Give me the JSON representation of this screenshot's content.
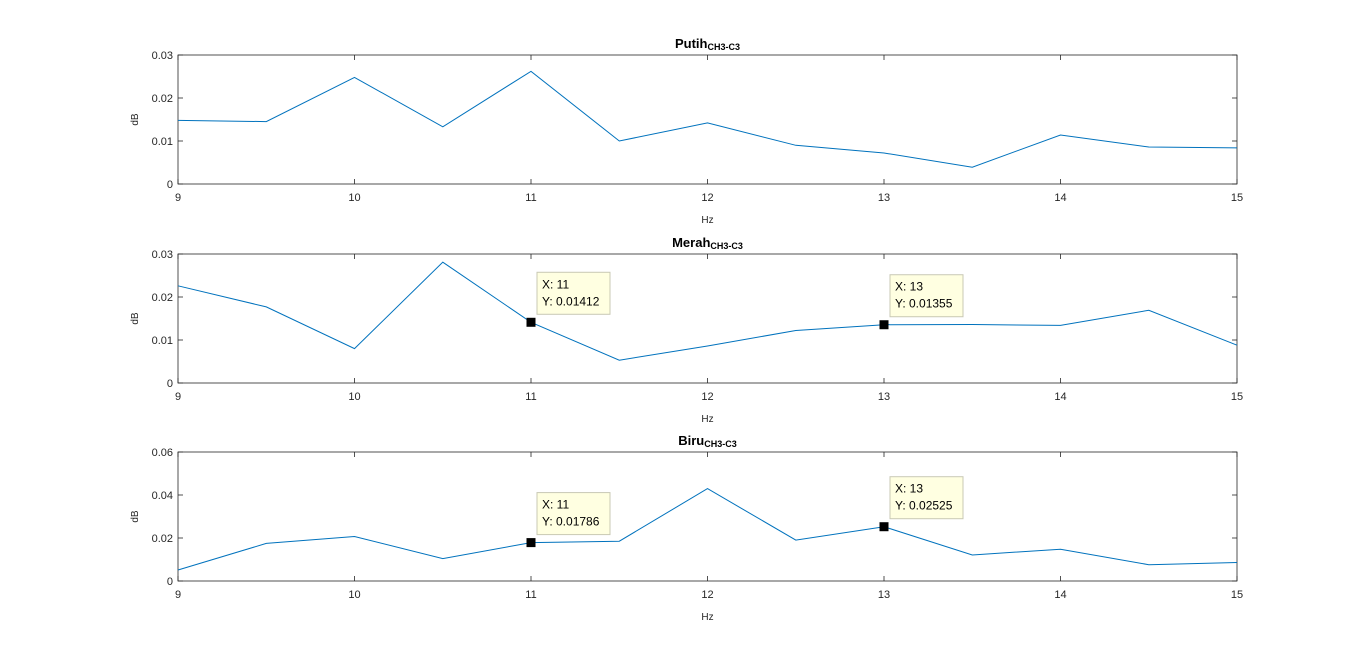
{
  "chart_data": [
    {
      "type": "line",
      "title": "Putih",
      "title_subscript": "CH3-C3",
      "xlabel": "Hz",
      "ylabel": "dB",
      "xlim": [
        9,
        15
      ],
      "ylim": [
        0,
        0.03
      ],
      "xticks": [
        "9",
        "10",
        "11",
        "12",
        "13",
        "14",
        "15"
      ],
      "yticks": [
        "0",
        "0.01",
        "0.02",
        "0.03"
      ],
      "grid": false,
      "line_color": "#0072bd",
      "series": [
        {
          "x": [
            9,
            9.5,
            10,
            10.5,
            11,
            11.5,
            12,
            12.5,
            13,
            13.5,
            14,
            14.5,
            15
          ],
          "y": [
            0.0148,
            0.0145,
            0.0248,
            0.0133,
            0.0262,
            0.01,
            0.0142,
            0.009,
            0.0072,
            0.0039,
            0.0114,
            0.0086,
            0.0084
          ]
        }
      ],
      "datatips": []
    },
    {
      "type": "line",
      "title": "Merah",
      "title_subscript": "CH3-C3",
      "xlabel": "Hz",
      "ylabel": "dB",
      "xlim": [
        9,
        15
      ],
      "ylim": [
        0,
        0.03
      ],
      "xticks": [
        "9",
        "10",
        "11",
        "12",
        "13",
        "14",
        "15"
      ],
      "yticks": [
        "0",
        "0.01",
        "0.02",
        "0.03"
      ],
      "grid": false,
      "line_color": "#0072bd",
      "series": [
        {
          "x": [
            9,
            9.5,
            10,
            10.5,
            11,
            11.5,
            12,
            12.5,
            13,
            13.5,
            14,
            14.5,
            15
          ],
          "y": [
            0.0226,
            0.0177,
            0.008,
            0.0281,
            0.01412,
            0.0053,
            0.0086,
            0.0122,
            0.01355,
            0.0136,
            0.0134,
            0.0169,
            0.0088
          ]
        }
      ],
      "datatips": [
        {
          "x": 11,
          "y": 0.01412,
          "line1": "X: 11",
          "line2": "Y: 0.01412"
        },
        {
          "x": 13,
          "y": 0.01355,
          "line1": "X: 13",
          "line2": "Y: 0.01355"
        }
      ]
    },
    {
      "type": "line",
      "title": "Biru",
      "title_subscript": "CH3-C3",
      "xlabel": "Hz",
      "ylabel": "dB",
      "xlim": [
        9,
        15
      ],
      "ylim": [
        0,
        0.06
      ],
      "xticks": [
        "9",
        "10",
        "11",
        "12",
        "13",
        "14",
        "15"
      ],
      "yticks": [
        "0",
        "0.02",
        "0.04",
        "0.06"
      ],
      "grid": false,
      "line_color": "#0072bd",
      "series": [
        {
          "x": [
            9,
            9.5,
            10,
            10.5,
            11,
            11.5,
            12,
            12.5,
            13,
            13.5,
            14,
            14.5,
            15
          ],
          "y": [
            0.0051,
            0.0175,
            0.0207,
            0.0104,
            0.01786,
            0.0185,
            0.043,
            0.019,
            0.02525,
            0.0121,
            0.0148,
            0.0076,
            0.0086
          ]
        }
      ],
      "datatips": [
        {
          "x": 11,
          "y": 0.01786,
          "line1": "X: 11",
          "line2": "Y: 0.01786"
        },
        {
          "x": 13,
          "y": 0.02525,
          "line1": "X: 13",
          "line2": "Y: 0.02525"
        }
      ]
    }
  ]
}
